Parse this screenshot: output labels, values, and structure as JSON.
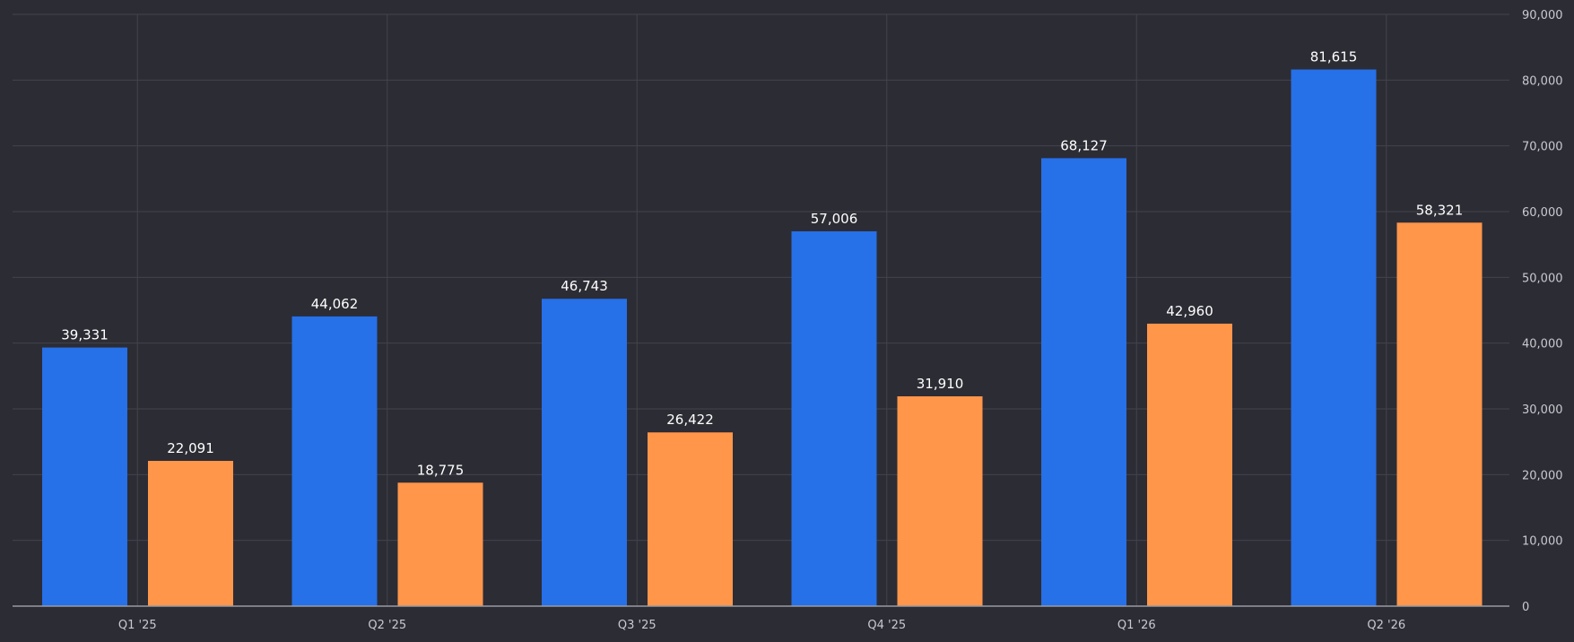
{
  "colors": {
    "background": "#2c2c35",
    "series_1": "#2670e8",
    "series_2": "#ff964a",
    "grid": "#43434d",
    "axis": "#9a9aa2"
  },
  "chart_data": {
    "type": "bar",
    "title": "",
    "xlabel": "",
    "ylabel": "",
    "categories": [
      "Q1 '25",
      "Q2 '25",
      "Q3 '25",
      "Q4 '25",
      "Q1 '26",
      "Q2 '26"
    ],
    "series": [
      {
        "values": [
          39331,
          44062,
          46743,
          57006,
          68127,
          81615
        ],
        "labels": [
          "39,331",
          "44,062",
          "46,743",
          "57,006",
          "68,127",
          "81,615"
        ]
      },
      {
        "values": [
          22091,
          18775,
          26422,
          31910,
          42960,
          58321
        ],
        "labels": [
          "22,091",
          "18,775",
          "26,422",
          "31,910",
          "42,960",
          "58,321"
        ]
      }
    ],
    "ylim": [
      0,
      90000
    ],
    "yticks": [
      0,
      10000,
      20000,
      30000,
      40000,
      50000,
      60000,
      70000,
      80000,
      90000
    ],
    "ytick_labels": [
      "0",
      "10,000",
      "20,000",
      "30,000",
      "40,000",
      "50,000",
      "60,000",
      "70,000",
      "80,000",
      "90,000"
    ],
    "y_axis_position": "right",
    "grid": true,
    "legend": "none"
  }
}
